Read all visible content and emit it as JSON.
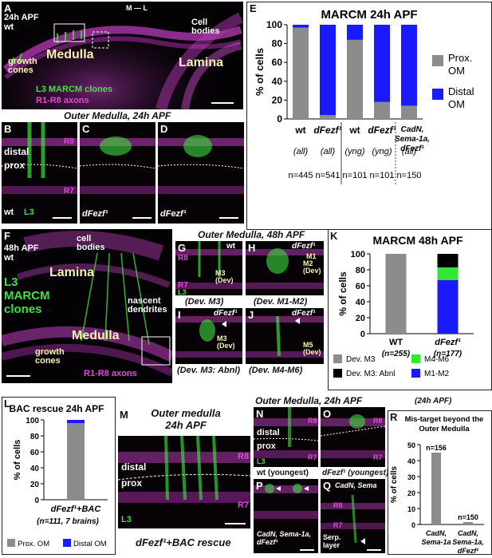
{
  "panel_labels": {
    "A": "A",
    "B": "B",
    "C": "C",
    "D": "D",
    "E": "E",
    "F": "F",
    "G": "G",
    "H": "H",
    "I": "I",
    "J": "J",
    "K": "K",
    "L": "L",
    "M": "M",
    "N": "N",
    "O": "O",
    "P": "P",
    "Q": "Q",
    "R": "R"
  },
  "panelA": {
    "stage": "24h APF",
    "genotype": "wt",
    "ml": "M — L",
    "medulla": "Medulla",
    "lamina": "Lamina",
    "growth_cones": "growth\ncones",
    "cell_bodies": "Cell\nbodies",
    "legend_green": "L3 MARCM clones",
    "legend_magenta": "R1-R8 axons"
  },
  "row_BD": {
    "title": "Outer Medulla, 24h APF",
    "distal": "distal",
    "prox": "prox",
    "r8": "R8",
    "r7": "R7",
    "wt": "wt",
    "l3": "L3",
    "mut": "dFezf¹"
  },
  "panelF": {
    "stage": "48h APF",
    "genotype": "wt",
    "cell_bodies": "cell\nbodies",
    "lamina": "Lamina",
    "nascent": "nascent\ndendrites",
    "medulla": "Medulla",
    "growth_cones": "growth\ncones",
    "l3": "L3\nMARCM\nclones",
    "axons": "R1-R8 axons"
  },
  "row_GJ": {
    "title": "Outer Medulla, 48h APF",
    "wt": "wt",
    "mut": "dFezf¹",
    "r8": "R8",
    "r7": "R7",
    "l3": "L3",
    "m3dev": "M3\n(Dev)",
    "m1": "M1",
    "m2dev": "M2\n(Dev)",
    "m5dev": "M5\n(Dev)",
    "capG": "(Dev. M3)",
    "capH": "(Dev. M1-M2)",
    "capI": "(Dev. M3: Abnl)",
    "capJ": "(Dev. M4-M6)"
  },
  "panelM": {
    "title": "Outer medulla\n24h APF",
    "distal": "distal",
    "prox": "prox",
    "r8": "R8",
    "r7": "R7",
    "l3": "L3",
    "caption": "dFezf¹+BAC rescue"
  },
  "row_NQ": {
    "title": "Outer Medulla, 24h APF",
    "distal": "distal",
    "prox": "prox",
    "r8": "R8",
    "r7": "R7",
    "l3": "L3",
    "capN": "wt (youngest)",
    "capO": "dFezf¹ (youngest)",
    "capP": "CadN, Sema-1a,\ndFezf¹",
    "capQtop": "CadN, Sema",
    "capQbot": "Serp.\nlayer"
  },
  "chart_data": [
    {
      "panel": "E",
      "type": "bar",
      "title": "MARCM 24h APF",
      "ylabel": "% of cells",
      "ylim": [
        0,
        100
      ],
      "yticks": [
        "0",
        "20",
        "40",
        "60",
        "80",
        "100"
      ],
      "categories": [
        "wt",
        "dFezf¹",
        "wt",
        "dFezf¹",
        "CadN, Sema-1a, dFezf¹"
      ],
      "subcaptions": [
        "(all)",
        "(all)",
        "(yng)",
        "(yng)",
        "(all)"
      ],
      "n_labels": [
        "n=445",
        "n=541",
        "n=101",
        "n=101",
        "n=150"
      ],
      "series": [
        {
          "name": "Prox. OM",
          "color": "#8c8c8c",
          "values": [
            97,
            4,
            84,
            18,
            14
          ]
        },
        {
          "name": "Distal OM",
          "color": "#1a1aff",
          "values": [
            3,
            96,
            16,
            82,
            86
          ]
        }
      ]
    },
    {
      "panel": "K",
      "type": "bar",
      "title": "MARCM 48h APF",
      "ylabel": "% of cells",
      "ylim": [
        0,
        100
      ],
      "yticks": [
        "0",
        "20",
        "40",
        "60",
        "80",
        "100"
      ],
      "categories": [
        "WT",
        "dFezf¹"
      ],
      "n_labels": [
        "(n=255)",
        "(n=177)"
      ],
      "series": [
        {
          "name": "Dev. M3",
          "color": "#8c8c8c",
          "values": [
            100,
            0
          ]
        },
        {
          "name": "M1-M2",
          "color": "#1a1aff",
          "values": [
            0,
            67
          ]
        },
        {
          "name": "M4-M6",
          "color": "#33e633",
          "values": [
            0,
            16
          ]
        },
        {
          "name": "Dev. M3: Abnl",
          "color": "#000000",
          "values": [
            0,
            17
          ]
        }
      ]
    },
    {
      "panel": "L",
      "type": "bar",
      "title": "BAC rescue 24h APF",
      "ylabel": "% of cells",
      "ylim": [
        0,
        100
      ],
      "yticks": [
        "0",
        "20",
        "40",
        "60",
        "80",
        "100"
      ],
      "categories": [
        "dFezf¹+BAC"
      ],
      "n_labels": [
        "(n=111, 7 brains)"
      ],
      "series": [
        {
          "name": "Prox. OM",
          "color": "#8c8c8c",
          "values": [
            96
          ]
        },
        {
          "name": "Distal OM",
          "color": "#1a1aff",
          "values": [
            4
          ]
        }
      ]
    },
    {
      "panel": "R",
      "type": "bar",
      "title": "Mis-target beyond the Outer Medulla",
      "header": "(24h APF)",
      "ylabel": "% of cells",
      "ylim": [
        0,
        50
      ],
      "yticks": [
        "0",
        "10",
        "20",
        "30",
        "40",
        "50"
      ],
      "categories": [
        "CadN, Sema-1a",
        "CadN, Sema-1a, dFezf¹"
      ],
      "n_labels": [
        "n=156",
        "n=150"
      ],
      "values": [
        45,
        1.5
      ],
      "color": "#8c8c8c"
    }
  ]
}
